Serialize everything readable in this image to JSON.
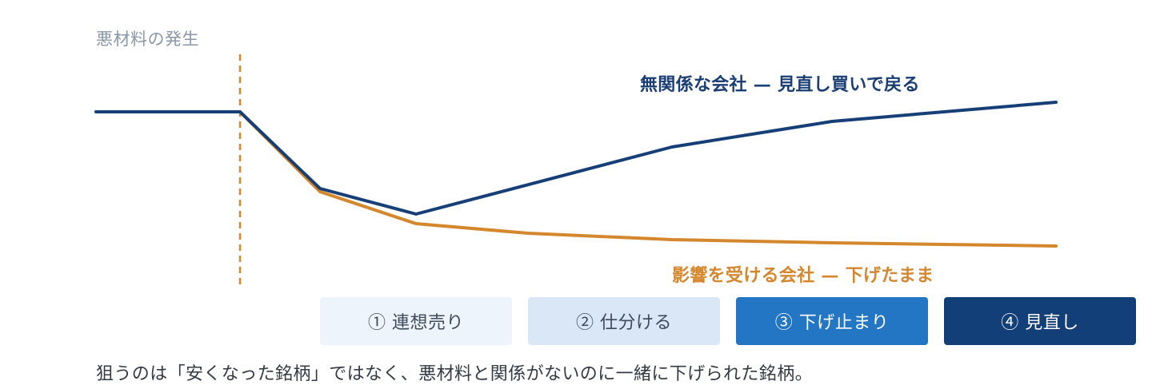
{
  "top_label": "悪材料の発生",
  "series_labels": {
    "unrelated": "無関係な会社 — 見直し買いで戻る",
    "affected": "影響を受ける会社 — 下げたまま"
  },
  "colors": {
    "unrelated": "#163f78",
    "affected": "#d4872c",
    "event_line": "#d4872c"
  },
  "steps": [
    {
      "label": "① 連想売り",
      "bg": "#eef4fb",
      "fg": "#3e4a5c"
    },
    {
      "label": "② 仕分ける",
      "bg": "#d9e7f7",
      "fg": "#3e4a5c"
    },
    {
      "label": "③ 下げ止まり",
      "bg": "#2276c4",
      "fg": "#ffffff"
    },
    {
      "label": "④ 見直し",
      "bg": "#123f78",
      "fg": "#ffffff"
    }
  ],
  "caption": "狙うのは「安くなった銘柄」ではなく、悪材料と関係がないのに一緒に下げられた銘柄。"
}
